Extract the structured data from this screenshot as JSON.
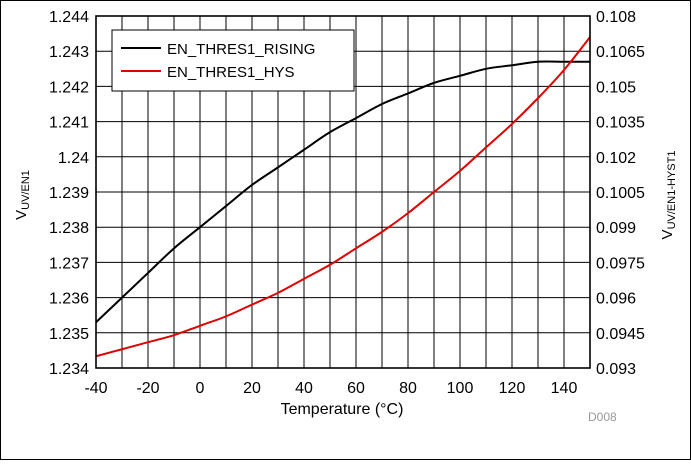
{
  "chart_data": {
    "type": "line",
    "xlabel": "Temperature (°C)",
    "ylabel_left": "V_UV/EN1",
    "ylabel_right": "V_UV/EN1-HYST1",
    "xlim": [
      -40,
      150
    ],
    "ylim_left": [
      1.234,
      1.244
    ],
    "ylim_right": [
      0.093,
      0.108
    ],
    "x_ticks": [
      -40,
      -20,
      0,
      20,
      40,
      60,
      80,
      100,
      120,
      140
    ],
    "y_ticks_left": [
      "1.244",
      "1.243",
      "1.242",
      "1.241",
      "1.24",
      "1.239",
      "1.238",
      "1.237",
      "1.236",
      "1.235",
      "1.234"
    ],
    "y_ticks_right": [
      "0.108",
      "0.1065",
      "0.105",
      "0.1035",
      "0.102",
      "0.1005",
      "0.099",
      "0.0975",
      "0.096",
      "0.0945",
      "0.093"
    ],
    "grid": true,
    "legend_position": "top-left",
    "figure_id": "D008",
    "series": [
      {
        "name": "EN_THRES1_RISING",
        "axis": "left",
        "color": "#000000",
        "x": [
          -40,
          -30,
          -20,
          -10,
          0,
          10,
          20,
          30,
          40,
          50,
          60,
          70,
          80,
          90,
          100,
          110,
          120,
          130,
          140,
          150
        ],
        "y": [
          1.2353,
          1.236,
          1.2367,
          1.2374,
          1.238,
          1.2386,
          1.2392,
          1.2397,
          1.2402,
          1.2407,
          1.2411,
          1.2415,
          1.2418,
          1.2421,
          1.2423,
          1.2425,
          1.2426,
          1.2427,
          1.2427,
          1.2427
        ]
      },
      {
        "name": "EN_THRES1_HYS",
        "axis": "right",
        "color": "#e00000",
        "x": [
          -40,
          -30,
          -20,
          -10,
          0,
          10,
          20,
          30,
          40,
          50,
          60,
          70,
          80,
          90,
          100,
          110,
          120,
          130,
          140,
          150
        ],
        "y": [
          0.0935,
          0.0938,
          0.0941,
          0.0944,
          0.0948,
          0.0952,
          0.0957,
          0.0962,
          0.0968,
          0.0974,
          0.0981,
          0.0988,
          0.0996,
          0.1005,
          0.1014,
          0.1024,
          0.1034,
          0.1045,
          0.1057,
          0.1071
        ]
      }
    ]
  }
}
